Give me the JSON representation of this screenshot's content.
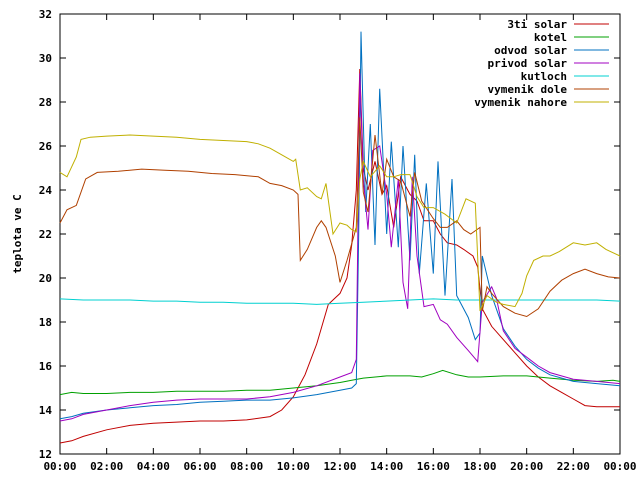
{
  "chart_data": {
    "type": "line",
    "title": "",
    "xlabel": "",
    "ylabel": "teplota ve C",
    "xlim": [
      0,
      24
    ],
    "ylim": [
      12,
      32
    ],
    "grid": false,
    "legend_position": "top-right",
    "x_ticks": [
      "00:00",
      "02:00",
      "04:00",
      "06:00",
      "08:00",
      "10:00",
      "12:00",
      "14:00",
      "16:00",
      "18:00",
      "20:00",
      "22:00",
      "00:00"
    ],
    "y_ticks": [
      "12",
      "14",
      "16",
      "18",
      "20",
      "22",
      "24",
      "26",
      "28",
      "30",
      "32"
    ],
    "series": [
      {
        "name": "3ti solar",
        "color": "#c00000",
        "points": [
          [
            0,
            12.5
          ],
          [
            0.5,
            12.6
          ],
          [
            1,
            12.8
          ],
          [
            2,
            13.1
          ],
          [
            3,
            13.3
          ],
          [
            4,
            13.4
          ],
          [
            5,
            13.45
          ],
          [
            6,
            13.5
          ],
          [
            7,
            13.5
          ],
          [
            8,
            13.55
          ],
          [
            9,
            13.7
          ],
          [
            9.5,
            14
          ],
          [
            10,
            14.6
          ],
          [
            10.5,
            15.6
          ],
          [
            11,
            17
          ],
          [
            11.5,
            18.8
          ],
          [
            12,
            19.3
          ],
          [
            12.3,
            20
          ],
          [
            12.5,
            21.5
          ],
          [
            12.7,
            24
          ],
          [
            12.85,
            29.5
          ],
          [
            13,
            25
          ],
          [
            13.2,
            24
          ],
          [
            13.5,
            25.3
          ],
          [
            13.8,
            23.8
          ],
          [
            14,
            24.2
          ],
          [
            14.3,
            22.3
          ],
          [
            14.6,
            24.6
          ],
          [
            15,
            23.8
          ],
          [
            15.3,
            23.5
          ],
          [
            15.6,
            22.6
          ],
          [
            16,
            22.6
          ],
          [
            16.3,
            22
          ],
          [
            16.6,
            21.6
          ],
          [
            17,
            21.5
          ],
          [
            17.3,
            21.3
          ],
          [
            17.7,
            21
          ],
          [
            17.9,
            20.5
          ],
          [
            18,
            19.5
          ],
          [
            18.1,
            18.6
          ],
          [
            18.5,
            17.8
          ],
          [
            19,
            17.2
          ],
          [
            19.5,
            16.6
          ],
          [
            20,
            16
          ],
          [
            20.5,
            15.5
          ],
          [
            21,
            15.1
          ],
          [
            21.5,
            14.8
          ],
          [
            22,
            14.5
          ],
          [
            22.5,
            14.2
          ],
          [
            23,
            14.15
          ],
          [
            24,
            14.15
          ]
        ]
      },
      {
        "name": "kotel",
        "color": "#00a000",
        "points": [
          [
            0,
            14.7
          ],
          [
            0.5,
            14.8
          ],
          [
            1,
            14.75
          ],
          [
            2,
            14.75
          ],
          [
            3,
            14.8
          ],
          [
            4,
            14.8
          ],
          [
            5,
            14.85
          ],
          [
            6,
            14.85
          ],
          [
            7,
            14.85
          ],
          [
            8,
            14.9
          ],
          [
            9,
            14.9
          ],
          [
            10,
            15
          ],
          [
            11,
            15.1
          ],
          [
            12,
            15.25
          ],
          [
            12.5,
            15.35
          ],
          [
            13,
            15.45
          ],
          [
            14,
            15.55
          ],
          [
            15,
            15.55
          ],
          [
            15.5,
            15.5
          ],
          [
            16,
            15.65
          ],
          [
            16.4,
            15.8
          ],
          [
            17,
            15.6
          ],
          [
            17.5,
            15.5
          ],
          [
            18,
            15.5
          ],
          [
            19,
            15.55
          ],
          [
            20,
            15.55
          ],
          [
            21,
            15.45
          ],
          [
            22,
            15.35
          ],
          [
            23,
            15.3
          ],
          [
            23.7,
            15.35
          ],
          [
            24,
            15.3
          ]
        ]
      },
      {
        "name": "odvod solar",
        "color": "#0070c0",
        "points": [
          [
            0,
            13.6
          ],
          [
            0.5,
            13.7
          ],
          [
            1,
            13.85
          ],
          [
            2,
            14.0
          ],
          [
            3,
            14.1
          ],
          [
            4,
            14.2
          ],
          [
            5,
            14.25
          ],
          [
            6,
            14.35
          ],
          [
            7,
            14.4
          ],
          [
            8,
            14.45
          ],
          [
            9,
            14.45
          ],
          [
            10,
            14.55
          ],
          [
            11,
            14.7
          ],
          [
            12,
            14.9
          ],
          [
            12.5,
            15.0
          ],
          [
            12.7,
            15.2
          ],
          [
            12.8,
            22
          ],
          [
            12.9,
            31.2
          ],
          [
            13.1,
            23
          ],
          [
            13.3,
            27
          ],
          [
            13.5,
            21.5
          ],
          [
            13.7,
            28.6
          ],
          [
            14,
            22
          ],
          [
            14.2,
            26.2
          ],
          [
            14.5,
            21.4
          ],
          [
            14.7,
            26
          ],
          [
            15,
            20.8
          ],
          [
            15.2,
            25.6
          ],
          [
            15.4,
            20.2
          ],
          [
            15.7,
            24.3
          ],
          [
            16,
            20.2
          ],
          [
            16.2,
            25.3
          ],
          [
            16.5,
            19.2
          ],
          [
            16.8,
            24.5
          ],
          [
            17,
            19.2
          ],
          [
            17.5,
            18.2
          ],
          [
            17.8,
            17.2
          ],
          [
            18,
            17.5
          ],
          [
            18.1,
            21
          ],
          [
            18.5,
            19.2
          ],
          [
            19,
            17.7
          ],
          [
            19.5,
            16.9
          ],
          [
            20,
            16.3
          ],
          [
            20.5,
            15.9
          ],
          [
            21,
            15.6
          ],
          [
            22,
            15.3
          ],
          [
            23,
            15.2
          ],
          [
            24,
            15.1
          ]
        ]
      },
      {
        "name": "privod solar",
        "color": "#a000c0",
        "points": [
          [
            0,
            13.5
          ],
          [
            0.5,
            13.6
          ],
          [
            1,
            13.8
          ],
          [
            2,
            14.0
          ],
          [
            3,
            14.2
          ],
          [
            4,
            14.35
          ],
          [
            5,
            14.45
          ],
          [
            6,
            14.5
          ],
          [
            7,
            14.5
          ],
          [
            8,
            14.5
          ],
          [
            9,
            14.6
          ],
          [
            10,
            14.8
          ],
          [
            11,
            15.1
          ],
          [
            12,
            15.5
          ],
          [
            12.5,
            15.7
          ],
          [
            12.7,
            16.3
          ],
          [
            12.85,
            29.3
          ],
          [
            13,
            24.5
          ],
          [
            13.2,
            22.2
          ],
          [
            13.4,
            25.8
          ],
          [
            13.7,
            26
          ],
          [
            14,
            23.8
          ],
          [
            14.2,
            21.4
          ],
          [
            14.5,
            24.5
          ],
          [
            14.7,
            19.8
          ],
          [
            14.9,
            18.6
          ],
          [
            15.1,
            24.6
          ],
          [
            15.3,
            21
          ],
          [
            15.6,
            18.7
          ],
          [
            16,
            18.8
          ],
          [
            16.3,
            18.1
          ],
          [
            16.6,
            17.9
          ],
          [
            17,
            17.3
          ],
          [
            17.5,
            16.7
          ],
          [
            17.9,
            16.2
          ],
          [
            18.1,
            18.9
          ],
          [
            18.5,
            19.6
          ],
          [
            18.7,
            19.1
          ],
          [
            19,
            17.6
          ],
          [
            19.5,
            16.8
          ],
          [
            20,
            16.4
          ],
          [
            20.5,
            16
          ],
          [
            21,
            15.7
          ],
          [
            22,
            15.4
          ],
          [
            23,
            15.3
          ],
          [
            24,
            15.2
          ]
        ]
      },
      {
        "name": "kutloch",
        "color": "#00d0d0",
        "points": [
          [
            0,
            19.05
          ],
          [
            1,
            19.0
          ],
          [
            2,
            19.0
          ],
          [
            3,
            19.0
          ],
          [
            4,
            18.95
          ],
          [
            5,
            18.95
          ],
          [
            6,
            18.9
          ],
          [
            7,
            18.9
          ],
          [
            8,
            18.85
          ],
          [
            9,
            18.85
          ],
          [
            10,
            18.85
          ],
          [
            11,
            18.8
          ],
          [
            12,
            18.85
          ],
          [
            13,
            18.9
          ],
          [
            14,
            18.95
          ],
          [
            15,
            19.0
          ],
          [
            16,
            19.05
          ],
          [
            17,
            19.0
          ],
          [
            18,
            19.0
          ],
          [
            19,
            19.0
          ],
          [
            20,
            19.0
          ],
          [
            21,
            19.0
          ],
          [
            22,
            19.0
          ],
          [
            23,
            19.0
          ],
          [
            24,
            18.95
          ]
        ]
      },
      {
        "name": "vymenik dole",
        "color": "#b04000",
        "points": [
          [
            0,
            22.5
          ],
          [
            0.3,
            23.1
          ],
          [
            0.7,
            23.3
          ],
          [
            1.1,
            24.5
          ],
          [
            1.6,
            24.8
          ],
          [
            2.5,
            24.85
          ],
          [
            3.5,
            24.95
          ],
          [
            4.5,
            24.9
          ],
          [
            5.5,
            24.85
          ],
          [
            6.5,
            24.75
          ],
          [
            7.5,
            24.7
          ],
          [
            8.5,
            24.6
          ],
          [
            9,
            24.3
          ],
          [
            9.5,
            24.2
          ],
          [
            10,
            24.0
          ],
          [
            10.2,
            23.8
          ],
          [
            10.3,
            20.8
          ],
          [
            10.6,
            21.3
          ],
          [
            11,
            22.3
          ],
          [
            11.2,
            22.6
          ],
          [
            11.4,
            22.3
          ],
          [
            11.8,
            21.0
          ],
          [
            12,
            19.8
          ],
          [
            12.3,
            20.8
          ],
          [
            12.7,
            22.3
          ],
          [
            12.85,
            27.3
          ],
          [
            13,
            23.9
          ],
          [
            13.2,
            23
          ],
          [
            13.5,
            26.5
          ],
          [
            13.8,
            23.8
          ],
          [
            14,
            25.4
          ],
          [
            14.3,
            24.6
          ],
          [
            14.6,
            24.4
          ],
          [
            15,
            22.8
          ],
          [
            15.2,
            24.8
          ],
          [
            15.5,
            23.5
          ],
          [
            16,
            22.7
          ],
          [
            16.3,
            22.3
          ],
          [
            16.6,
            22.3
          ],
          [
            17,
            22.6
          ],
          [
            17.3,
            22.2
          ],
          [
            17.6,
            22.0
          ],
          [
            18,
            22.3
          ],
          [
            18.1,
            18.5
          ],
          [
            18.3,
            19.6
          ],
          [
            18.5,
            19.3
          ],
          [
            19,
            18.7
          ],
          [
            19.5,
            18.4
          ],
          [
            20,
            18.25
          ],
          [
            20.5,
            18.6
          ],
          [
            21,
            19.4
          ],
          [
            21.5,
            19.9
          ],
          [
            22,
            20.2
          ],
          [
            22.5,
            20.4
          ],
          [
            23,
            20.2
          ],
          [
            23.5,
            20.05
          ],
          [
            24,
            20.0
          ]
        ]
      },
      {
        "name": "vymenik nahore",
        "color": "#c0b000",
        "points": [
          [
            0,
            24.8
          ],
          [
            0.3,
            24.6
          ],
          [
            0.7,
            25.5
          ],
          [
            0.9,
            26.3
          ],
          [
            1.3,
            26.4
          ],
          [
            2,
            26.45
          ],
          [
            3,
            26.5
          ],
          [
            4,
            26.45
          ],
          [
            5,
            26.4
          ],
          [
            6,
            26.3
          ],
          [
            7,
            26.25
          ],
          [
            8,
            26.2
          ],
          [
            8.5,
            26.1
          ],
          [
            9,
            25.9
          ],
          [
            9.5,
            25.6
          ],
          [
            10,
            25.3
          ],
          [
            10.1,
            25.4
          ],
          [
            10.3,
            24.0
          ],
          [
            10.6,
            24.1
          ],
          [
            11,
            23.7
          ],
          [
            11.2,
            23.6
          ],
          [
            11.4,
            24.3
          ],
          [
            11.7,
            22.0
          ],
          [
            12,
            22.5
          ],
          [
            12.3,
            22.4
          ],
          [
            12.5,
            22.2
          ],
          [
            12.7,
            22.1
          ],
          [
            12.85,
            24.5
          ],
          [
            13,
            25.3
          ],
          [
            13.3,
            24.6
          ],
          [
            13.7,
            25.1
          ],
          [
            14,
            24.6
          ],
          [
            14.3,
            24.6
          ],
          [
            14.6,
            24.7
          ],
          [
            15,
            24.7
          ],
          [
            15.3,
            23.7
          ],
          [
            15.6,
            23.2
          ],
          [
            16,
            23.2
          ],
          [
            16.5,
            22.9
          ],
          [
            17,
            22.5
          ],
          [
            17.4,
            23.6
          ],
          [
            17.8,
            23.4
          ],
          [
            18,
            18.5
          ],
          [
            18.3,
            19.2
          ],
          [
            18.7,
            18.9
          ],
          [
            19,
            18.8
          ],
          [
            19.5,
            18.7
          ],
          [
            19.8,
            19.3
          ],
          [
            20,
            20.1
          ],
          [
            20.3,
            20.8
          ],
          [
            20.7,
            21.0
          ],
          [
            21,
            21.0
          ],
          [
            21.4,
            21.2
          ],
          [
            22,
            21.6
          ],
          [
            22.5,
            21.5
          ],
          [
            23,
            21.6
          ],
          [
            23.4,
            21.3
          ],
          [
            24,
            21.0
          ]
        ]
      }
    ]
  }
}
